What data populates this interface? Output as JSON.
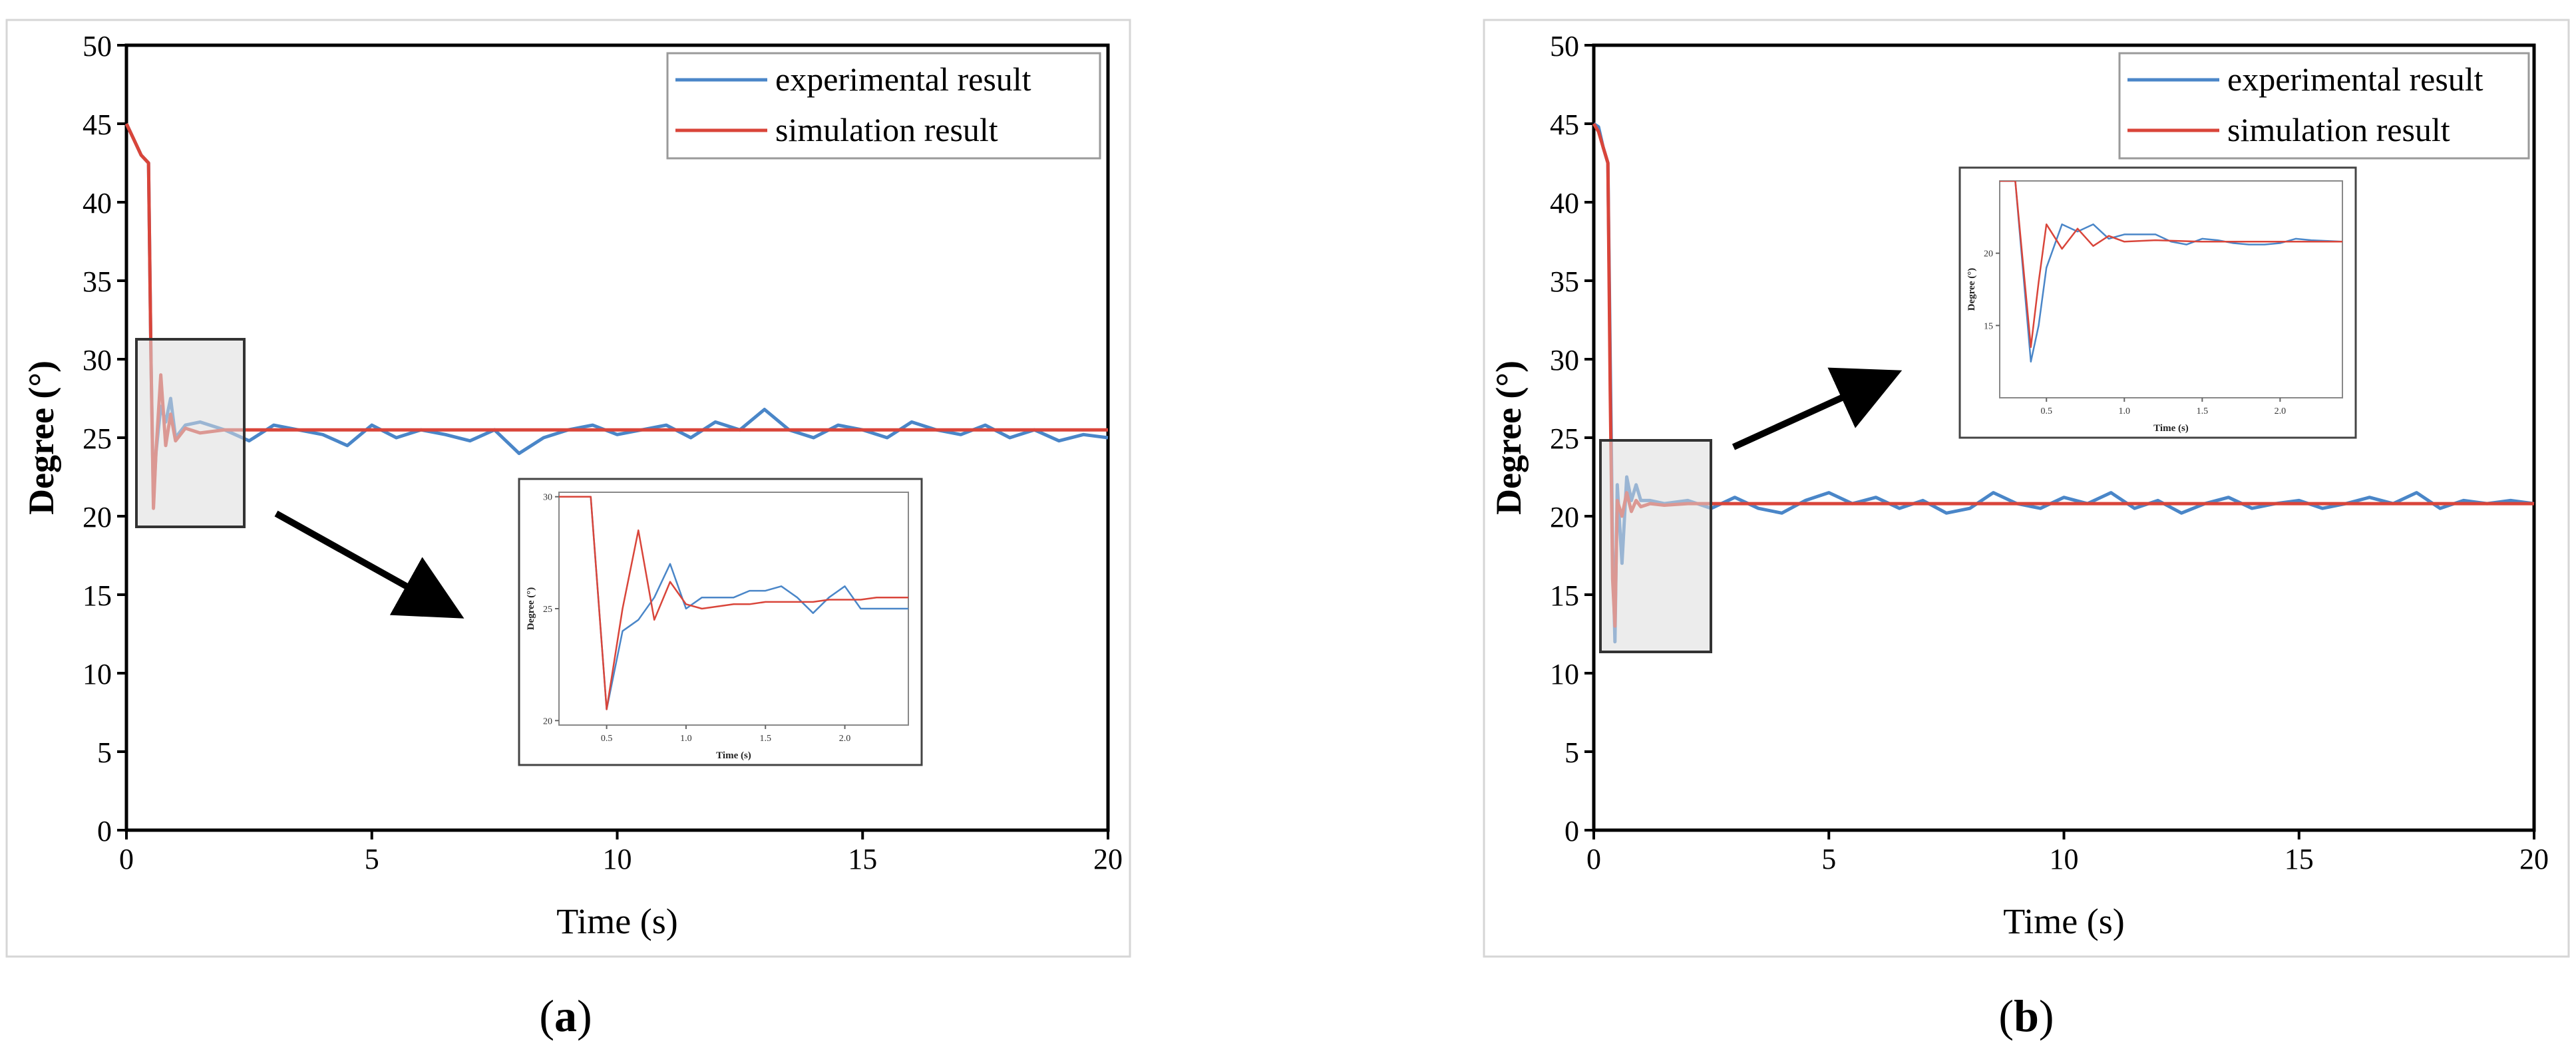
{
  "figure": {
    "panels": [
      {
        "label": "a",
        "legend": [
          "experimental result",
          "simulation result"
        ],
        "inset": {
          "xlabel": "Time (s)",
          "ylabel": "Degree (°)"
        }
      },
      {
        "label": "b",
        "legend": [
          "experimental result",
          "simulation result"
        ],
        "inset": {
          "xlabel": "Time (s)",
          "ylabel": "Degree (°)"
        }
      }
    ],
    "colors": {
      "experimental": "#4a86c8",
      "simulation": "#d9453a"
    }
  },
  "chart_data": [
    {
      "type": "line",
      "title": "",
      "xlabel": "Time (s)",
      "ylabel": "Degree (°)",
      "xlim": [
        0,
        20
      ],
      "ylim": [
        0,
        50
      ],
      "xticks": [
        0,
        5,
        10,
        15,
        20
      ],
      "yticks": [
        0,
        5,
        10,
        15,
        20,
        25,
        30,
        35,
        40,
        45,
        50
      ],
      "legend_position": "top-right",
      "grid": false,
      "series": [
        {
          "name": "experimental result",
          "x": [
            0,
            0.15,
            0.3,
            0.45,
            0.5,
            0.55,
            0.6,
            0.7,
            0.8,
            0.9,
            1.0,
            1.2,
            1.5,
            2.0,
            2.5,
            3.0,
            3.5,
            4.0,
            4.5,
            5.0,
            5.5,
            6.0,
            6.5,
            7.0,
            7.5,
            8.0,
            8.5,
            9.0,
            9.5,
            10.0,
            10.5,
            11.0,
            11.5,
            12.0,
            12.5,
            13.0,
            13.5,
            14.0,
            14.5,
            15.0,
            15.5,
            16.0,
            16.5,
            17.0,
            17.5,
            18.0,
            18.5,
            19.0,
            19.5,
            20.0
          ],
          "y": [
            45,
            44,
            43,
            42.5,
            30,
            21,
            24,
            27,
            26,
            27.5,
            25,
            25.8,
            26,
            25.5,
            24.8,
            25.8,
            25.5,
            25.2,
            24.5,
            25.8,
            25,
            25.5,
            25.2,
            24.8,
            25.5,
            24,
            25,
            25.5,
            25.8,
            25.2,
            25.5,
            25.8,
            25,
            26,
            25.5,
            26.8,
            25.5,
            25,
            25.8,
            25.5,
            25,
            26,
            25.5,
            25.2,
            25.8,
            25,
            25.5,
            24.8,
            25.2,
            25
          ]
        },
        {
          "name": "simulation result",
          "x": [
            0,
            0.15,
            0.3,
            0.45,
            0.5,
            0.55,
            0.6,
            0.7,
            0.8,
            0.9,
            1.0,
            1.2,
            1.5,
            2.0,
            20.0
          ],
          "y": [
            45,
            44,
            43,
            42.5,
            30,
            20.5,
            24,
            29,
            24.5,
            26.5,
            24.8,
            25.6,
            25.3,
            25.5,
            25.5
          ]
        }
      ],
      "inset": {
        "xlim": [
          0.2,
          2.4
        ],
        "ylim": [
          19.8,
          30.2
        ],
        "xticks": [
          0.5,
          1.0,
          1.5,
          2.0
        ],
        "xtick_labels": [
          "0.5",
          "1.0",
          "1.5",
          "2.0"
        ],
        "yticks": [
          20,
          25,
          30
        ],
        "ytick_labels": [
          "20",
          "25",
          "30"
        ],
        "series": [
          {
            "x": [
              0.2,
              0.3,
              0.4,
              0.5,
              0.6,
              0.7,
              0.8,
              0.9,
              1.0,
              1.1,
              1.2,
              1.3,
              1.4,
              1.5,
              1.6,
              1.7,
              1.8,
              1.9,
              2.0,
              2.1,
              2.2,
              2.3,
              2.4
            ],
            "y": [
              30,
              30,
              30,
              20.5,
              24,
              24.5,
              25.5,
              27,
              25,
              25.5,
              25.5,
              25.5,
              25.8,
              25.8,
              26,
              25.5,
              24.8,
              25.5,
              26,
              25,
              25,
              25,
              25
            ]
          },
          {
            "x": [
              0.2,
              0.3,
              0.4,
              0.5,
              0.6,
              0.7,
              0.8,
              0.9,
              1.0,
              1.1,
              1.2,
              1.3,
              1.4,
              1.5,
              1.6,
              1.7,
              1.8,
              1.9,
              2.0,
              2.1,
              2.2,
              2.3,
              2.4
            ],
            "y": [
              30,
              30,
              30,
              20.5,
              25,
              28.5,
              24.5,
              26.2,
              25.2,
              25.0,
              25.1,
              25.2,
              25.2,
              25.3,
              25.3,
              25.3,
              25.3,
              25.4,
              25.4,
              25.4,
              25.5,
              25.5,
              25.5
            ]
          }
        ]
      }
    },
    {
      "type": "line",
      "title": "",
      "xlabel": "Time (s)",
      "ylabel": "Degree (°)",
      "xlim": [
        0,
        20
      ],
      "ylim": [
        0,
        50
      ],
      "xticks": [
        0,
        5,
        10,
        15,
        20
      ],
      "yticks": [
        0,
        5,
        10,
        15,
        20,
        25,
        30,
        35,
        40,
        45,
        50
      ],
      "legend_position": "top-right",
      "grid": false,
      "series": [
        {
          "name": "experimental result",
          "x": [
            0,
            0.1,
            0.2,
            0.3,
            0.35,
            0.4,
            0.45,
            0.5,
            0.6,
            0.7,
            0.8,
            0.9,
            1.0,
            1.2,
            1.5,
            2.0,
            2.5,
            3.0,
            3.5,
            4.0,
            4.5,
            5.0,
            5.5,
            6.0,
            6.5,
            7.0,
            7.5,
            8.0,
            8.5,
            9.0,
            9.5,
            10.0,
            10.5,
            11.0,
            11.5,
            12.0,
            12.5,
            13.0,
            13.5,
            14.0,
            14.5,
            15.0,
            15.5,
            16.0,
            16.5,
            17.0,
            17.5,
            18.0,
            18.5,
            19.0,
            19.5,
            20.0
          ],
          "y": [
            45,
            44.8,
            43.5,
            42.5,
            30,
            18,
            12,
            22,
            17,
            22.5,
            21,
            22,
            21,
            21,
            20.8,
            21,
            20.5,
            21.2,
            20.5,
            20.2,
            21,
            21.5,
            20.8,
            21.2,
            20.5,
            21,
            20.2,
            20.5,
            21.5,
            20.8,
            20.5,
            21.2,
            20.8,
            21.5,
            20.5,
            21,
            20.2,
            20.8,
            21.2,
            20.5,
            20.8,
            21,
            20.5,
            20.8,
            21.2,
            20.8,
            21.5,
            20.5,
            21,
            20.8,
            21,
            20.8
          ]
        },
        {
          "name": "simulation result",
          "x": [
            0,
            0.1,
            0.2,
            0.3,
            0.35,
            0.4,
            0.45,
            0.5,
            0.6,
            0.7,
            0.8,
            0.9,
            1.0,
            1.2,
            1.5,
            2.0,
            20.0
          ],
          "y": [
            45,
            44.5,
            43.5,
            42.5,
            28,
            16,
            13,
            21,
            20,
            21.5,
            20.3,
            21,
            20.6,
            20.8,
            20.7,
            20.8,
            20.8
          ]
        }
      ],
      "inset": {
        "xlim": [
          0.2,
          2.4
        ],
        "ylim": [
          10,
          25
        ],
        "xticks": [
          0.5,
          1.0,
          1.5,
          2.0
        ],
        "xtick_labels": [
          "0.5",
          "1.0",
          "1.5",
          "2.0"
        ],
        "yticks": [
          15,
          20
        ],
        "ytick_labels": [
          "15",
          "20"
        ],
        "series": [
          {
            "x": [
              0.2,
              0.3,
              0.4,
              0.45,
              0.5,
              0.6,
              0.7,
              0.8,
              0.9,
              1.0,
              1.1,
              1.2,
              1.3,
              1.4,
              1.5,
              1.6,
              1.7,
              1.8,
              1.9,
              2.0,
              2.1,
              2.2,
              2.4
            ],
            "y": [
              25,
              25,
              12.5,
              15,
              19,
              22,
              21.5,
              22,
              21,
              21.3,
              21.3,
              21.3,
              20.8,
              20.6,
              21,
              20.9,
              20.7,
              20.6,
              20.6,
              20.7,
              21.0,
              20.9,
              20.8
            ]
          },
          {
            "x": [
              0.2,
              0.3,
              0.4,
              0.45,
              0.5,
              0.6,
              0.7,
              0.8,
              0.9,
              1.0,
              1.2,
              1.5,
              2.0,
              2.4
            ],
            "y": [
              25,
              25,
              13.5,
              18,
              22,
              20.3,
              21.7,
              20.5,
              21.2,
              20.8,
              20.9,
              20.8,
              20.8,
              20.8
            ]
          }
        ]
      }
    }
  ]
}
